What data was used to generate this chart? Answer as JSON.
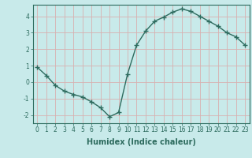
{
  "x": [
    0,
    1,
    2,
    3,
    4,
    5,
    6,
    7,
    8,
    9,
    10,
    11,
    12,
    13,
    14,
    15,
    16,
    17,
    18,
    19,
    20,
    21,
    22,
    23
  ],
  "y": [
    0.9,
    0.4,
    -0.2,
    -0.55,
    -0.75,
    -0.9,
    -1.2,
    -1.55,
    -2.1,
    -1.85,
    0.5,
    2.25,
    3.1,
    3.7,
    3.95,
    4.25,
    4.45,
    4.3,
    4.0,
    3.7,
    3.4,
    3.0,
    2.75,
    2.25
  ],
  "xlabel": "Humidex (Indice chaleur)",
  "xlim": [
    -0.5,
    23.5
  ],
  "ylim": [
    -2.5,
    4.7
  ],
  "yticks": [
    -2,
    -1,
    0,
    1,
    2,
    3,
    4
  ],
  "xticks": [
    0,
    1,
    2,
    3,
    4,
    5,
    6,
    7,
    8,
    9,
    10,
    11,
    12,
    13,
    14,
    15,
    16,
    17,
    18,
    19,
    20,
    21,
    22,
    23
  ],
  "line_color": "#2d6b5e",
  "marker": "+",
  "bg_color": "#c8eaea",
  "grid_color": "#d8b0b0",
  "tick_color": "#2d6b5e",
  "label_color": "#2d6b5e",
  "xlabel_fontsize": 7,
  "tick_fontsize": 5.5,
  "linewidth": 1.0,
  "markersize": 4,
  "markeredgewidth": 1.0
}
